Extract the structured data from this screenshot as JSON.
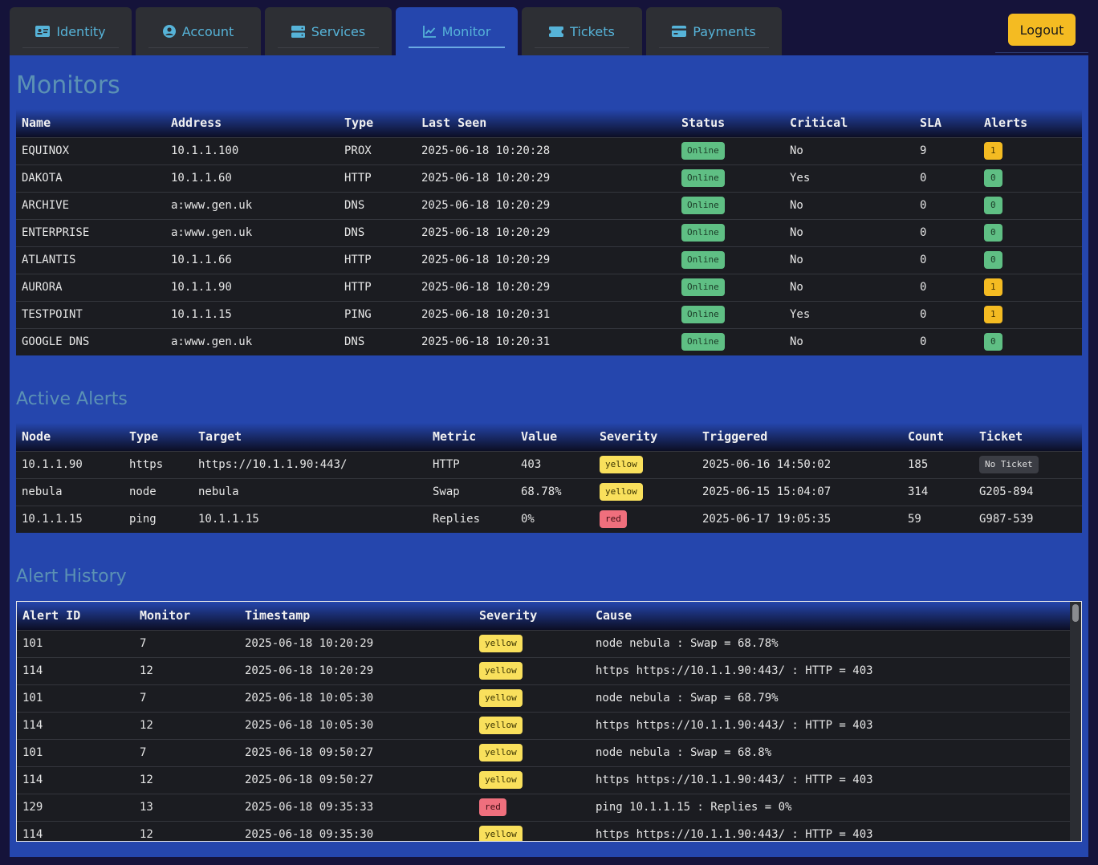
{
  "nav": {
    "tabs": [
      {
        "label": "Identity",
        "icon": "id-card-icon"
      },
      {
        "label": "Account",
        "icon": "user-circle-icon"
      },
      {
        "label": "Services",
        "icon": "server-icon"
      },
      {
        "label": "Monitor",
        "icon": "chart-line-icon",
        "active": true
      },
      {
        "label": "Tickets",
        "icon": "ticket-icon"
      },
      {
        "label": "Payments",
        "icon": "credit-card-icon"
      }
    ],
    "logout_label": "Logout"
  },
  "colors": {
    "accent": "#2546ad",
    "tab_text": "#56b3d8",
    "logout": "#f4bb22",
    "online": "#5fbf84",
    "yellow": "#f9e05c",
    "red": "#ef6f7d"
  },
  "monitors": {
    "title": "Monitors",
    "headers": [
      "Name",
      "Address",
      "Type",
      "Last Seen",
      "Status",
      "Critical",
      "SLA",
      "Alerts"
    ],
    "rows": [
      {
        "name": "EQUINOX",
        "address": "10.1.1.100",
        "type": "PROX",
        "last_seen": "2025-06-18 10:20:28",
        "status": "Online",
        "critical": "No",
        "sla": "9",
        "alerts": "1"
      },
      {
        "name": "DAKOTA",
        "address": "10.1.1.60",
        "type": "HTTP",
        "last_seen": "2025-06-18 10:20:29",
        "status": "Online",
        "critical": "Yes",
        "sla": "0",
        "alerts": "0"
      },
      {
        "name": "ARCHIVE",
        "address": "a:www.gen.uk",
        "type": "DNS",
        "last_seen": "2025-06-18 10:20:29",
        "status": "Online",
        "critical": "No",
        "sla": "0",
        "alerts": "0"
      },
      {
        "name": "ENTERPRISE",
        "address": "a:www.gen.uk",
        "type": "DNS",
        "last_seen": "2025-06-18 10:20:29",
        "status": "Online",
        "critical": "No",
        "sla": "0",
        "alerts": "0"
      },
      {
        "name": "ATLANTIS",
        "address": "10.1.1.66",
        "type": "HTTP",
        "last_seen": "2025-06-18 10:20:29",
        "status": "Online",
        "critical": "No",
        "sla": "0",
        "alerts": "0"
      },
      {
        "name": "AURORA",
        "address": "10.1.1.90",
        "type": "HTTP",
        "last_seen": "2025-06-18 10:20:29",
        "status": "Online",
        "critical": "No",
        "sla": "0",
        "alerts": "1"
      },
      {
        "name": "TESTPOINT",
        "address": "10.1.1.15",
        "type": "PING",
        "last_seen": "2025-06-18 10:20:31",
        "status": "Online",
        "critical": "Yes",
        "sla": "0",
        "alerts": "1"
      },
      {
        "name": "GOOGLE DNS",
        "address": "a:www.gen.uk",
        "type": "DNS",
        "last_seen": "2025-06-18 10:20:31",
        "status": "Online",
        "critical": "No",
        "sla": "0",
        "alerts": "0"
      }
    ]
  },
  "active_alerts": {
    "title": "Active Alerts",
    "headers": [
      "Node",
      "Type",
      "Target",
      "Metric",
      "Value",
      "Severity",
      "Triggered",
      "Count",
      "Ticket"
    ],
    "rows": [
      {
        "node": "10.1.1.90",
        "type": "https",
        "target": "https://10.1.1.90:443/",
        "metric": "HTTP",
        "value": "403",
        "severity": "yellow",
        "triggered": "2025-06-16 14:50:02",
        "count": "185",
        "ticket": "No Ticket"
      },
      {
        "node": "nebula",
        "type": "node",
        "target": "nebula",
        "metric": "Swap",
        "value": "68.78%",
        "severity": "yellow",
        "triggered": "2025-06-15 15:04:07",
        "count": "314",
        "ticket": "G205-894"
      },
      {
        "node": "10.1.1.15",
        "type": "ping",
        "target": "10.1.1.15",
        "metric": "Replies",
        "value": "0%",
        "severity": "red",
        "triggered": "2025-06-17 19:05:35",
        "count": "59",
        "ticket": "G987-539"
      }
    ]
  },
  "alert_history": {
    "title": "Alert History",
    "headers": [
      "Alert ID",
      "Monitor",
      "Timestamp",
      "Severity",
      "Cause"
    ],
    "rows": [
      {
        "id": "101",
        "monitor": "7",
        "timestamp": "2025-06-18 10:20:29",
        "severity": "yellow",
        "cause": "node nebula : Swap = 68.78%"
      },
      {
        "id": "114",
        "monitor": "12",
        "timestamp": "2025-06-18 10:20:29",
        "severity": "yellow",
        "cause": "https https://10.1.1.90:443/ : HTTP = 403"
      },
      {
        "id": "101",
        "monitor": "7",
        "timestamp": "2025-06-18 10:05:30",
        "severity": "yellow",
        "cause": "node nebula : Swap = 68.79%"
      },
      {
        "id": "114",
        "monitor": "12",
        "timestamp": "2025-06-18 10:05:30",
        "severity": "yellow",
        "cause": "https https://10.1.1.90:443/ : HTTP = 403"
      },
      {
        "id": "101",
        "monitor": "7",
        "timestamp": "2025-06-18 09:50:27",
        "severity": "yellow",
        "cause": "node nebula : Swap = 68.8%"
      },
      {
        "id": "114",
        "monitor": "12",
        "timestamp": "2025-06-18 09:50:27",
        "severity": "yellow",
        "cause": "https https://10.1.1.90:443/ : HTTP = 403"
      },
      {
        "id": "129",
        "monitor": "13",
        "timestamp": "2025-06-18 09:35:33",
        "severity": "red",
        "cause": "ping 10.1.1.15 : Replies = 0%"
      },
      {
        "id": "114",
        "monitor": "12",
        "timestamp": "2025-06-18 09:35:30",
        "severity": "yellow",
        "cause": "https https://10.1.1.90:443/ : HTTP = 403"
      }
    ]
  }
}
